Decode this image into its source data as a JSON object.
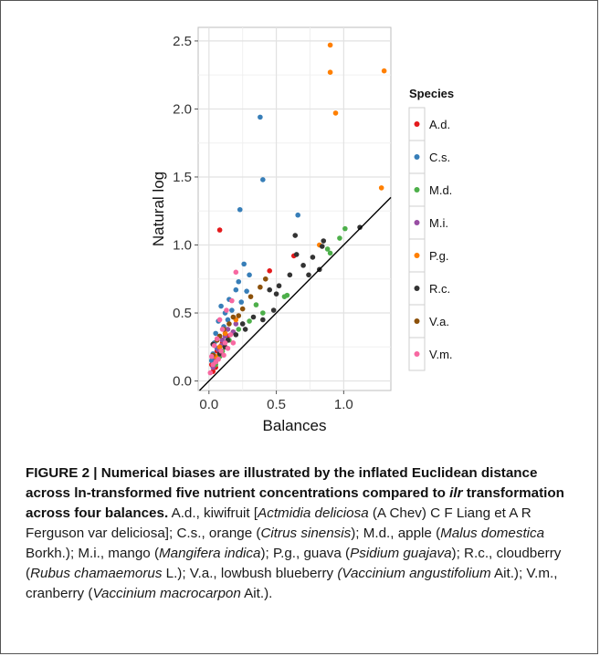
{
  "chart_data": {
    "type": "scatter",
    "title": "",
    "xlabel": "Balances",
    "ylabel": "Natural log",
    "xlim": [
      -0.08,
      1.35
    ],
    "ylim": [
      -0.07,
      2.6
    ],
    "xticks": [
      0.0,
      0.5,
      1.0
    ],
    "xtick_labels": [
      "0.0",
      "0.5",
      "1.0"
    ],
    "yticks": [
      0.0,
      0.5,
      1.0,
      1.5,
      2.0,
      2.5
    ],
    "ytick_labels": [
      "0.0",
      "0.5",
      "1.0",
      "1.5",
      "2.0",
      "2.5"
    ],
    "grid": true,
    "background": "#ffffff",
    "legend": {
      "title": "Species",
      "placement": "right"
    },
    "reference_line": {
      "slope": 1,
      "intercept": 0
    },
    "series": [
      {
        "name": "A.d.",
        "color": "#e41a1c",
        "points": [
          [
            0.08,
            1.11
          ],
          [
            0.45,
            0.81
          ],
          [
            0.63,
            0.92
          ],
          [
            0.02,
            0.12
          ],
          [
            0.04,
            0.17
          ],
          [
            0.06,
            0.22
          ],
          [
            0.1,
            0.28
          ],
          [
            0.14,
            0.33
          ],
          [
            0.05,
            0.1
          ],
          [
            0.09,
            0.2
          ],
          [
            0.18,
            0.36
          ],
          [
            0.03,
            0.07
          ]
        ]
      },
      {
        "name": "C.s.",
        "color": "#377eb8",
        "points": [
          [
            0.38,
            1.94
          ],
          [
            0.4,
            1.48
          ],
          [
            0.23,
            1.26
          ],
          [
            0.66,
            1.22
          ],
          [
            0.26,
            0.86
          ],
          [
            0.3,
            0.78
          ],
          [
            0.22,
            0.73
          ],
          [
            0.2,
            0.67
          ],
          [
            0.28,
            0.66
          ],
          [
            0.15,
            0.6
          ],
          [
            0.24,
            0.58
          ],
          [
            0.09,
            0.55
          ],
          [
            0.12,
            0.5
          ],
          [
            0.17,
            0.52
          ],
          [
            0.07,
            0.44
          ],
          [
            0.11,
            0.4
          ],
          [
            0.05,
            0.35
          ],
          [
            0.14,
            0.45
          ],
          [
            0.04,
            0.28
          ],
          [
            0.03,
            0.2
          ],
          [
            0.02,
            0.15
          ],
          [
            0.1,
            0.3
          ],
          [
            0.06,
            0.24
          ]
        ]
      },
      {
        "name": "M.d.",
        "color": "#4daf4a",
        "points": [
          [
            1.01,
            1.12
          ],
          [
            0.97,
            1.05
          ],
          [
            0.88,
            0.97
          ],
          [
            0.9,
            0.94
          ],
          [
            0.56,
            0.62
          ],
          [
            0.58,
            0.63
          ],
          [
            0.35,
            0.56
          ],
          [
            0.4,
            0.5
          ],
          [
            0.3,
            0.44
          ],
          [
            0.22,
            0.38
          ],
          [
            0.15,
            0.3
          ],
          [
            0.1,
            0.22
          ],
          [
            0.05,
            0.12
          ],
          [
            0.08,
            0.18
          ]
        ]
      },
      {
        "name": "M.i.",
        "color": "#984ea3",
        "points": [
          [
            0.14,
            0.38
          ],
          [
            0.1,
            0.3
          ],
          [
            0.07,
            0.23
          ],
          [
            0.05,
            0.17
          ],
          [
            0.12,
            0.33
          ],
          [
            0.18,
            0.36
          ],
          [
            0.03,
            0.1
          ],
          [
            0.2,
            0.42
          ],
          [
            0.09,
            0.26
          ]
        ]
      },
      {
        "name": "P.g.",
        "color": "#ff7f00",
        "points": [
          [
            0.9,
            2.47
          ],
          [
            0.9,
            2.27
          ],
          [
            1.3,
            2.28
          ],
          [
            0.94,
            1.97
          ],
          [
            1.28,
            1.42
          ],
          [
            0.82,
            1.0
          ],
          [
            0.2,
            0.45
          ],
          [
            0.12,
            0.35
          ],
          [
            0.08,
            0.25
          ],
          [
            0.05,
            0.18
          ]
        ]
      },
      {
        "name": "R.c.",
        "color": "#333333",
        "points": [
          [
            1.12,
            1.13
          ],
          [
            0.85,
            1.03
          ],
          [
            0.84,
            0.99
          ],
          [
            0.65,
            0.93
          ],
          [
            0.64,
            1.07
          ],
          [
            0.77,
            0.91
          ],
          [
            0.7,
            0.85
          ],
          [
            0.82,
            0.82
          ],
          [
            0.74,
            0.78
          ],
          [
            0.6,
            0.78
          ],
          [
            0.52,
            0.7
          ],
          [
            0.45,
            0.67
          ],
          [
            0.5,
            0.64
          ],
          [
            0.33,
            0.47
          ],
          [
            0.4,
            0.45
          ],
          [
            0.48,
            0.52
          ],
          [
            0.27,
            0.38
          ],
          [
            0.2,
            0.34
          ],
          [
            0.14,
            0.3
          ],
          [
            0.08,
            0.2
          ],
          [
            0.05,
            0.14
          ],
          [
            0.03,
            0.27
          ],
          [
            0.12,
            0.25
          ],
          [
            0.25,
            0.42
          ]
        ]
      },
      {
        "name": "V.a.",
        "color": "#8c510a",
        "points": [
          [
            0.42,
            0.75
          ],
          [
            0.38,
            0.69
          ],
          [
            0.31,
            0.62
          ],
          [
            0.25,
            0.53
          ],
          [
            0.18,
            0.47
          ],
          [
            0.11,
            0.38
          ],
          [
            0.06,
            0.3
          ],
          [
            0.03,
            0.19
          ],
          [
            0.15,
            0.42
          ],
          [
            0.08,
            0.33
          ],
          [
            0.22,
            0.48
          ]
        ]
      },
      {
        "name": "V.m.",
        "color": "#f768a1",
        "points": [
          [
            0.2,
            0.8
          ],
          [
            0.17,
            0.59
          ],
          [
            0.13,
            0.52
          ],
          [
            0.08,
            0.45
          ],
          [
            0.1,
            0.38
          ],
          [
            0.06,
            0.31
          ],
          [
            0.04,
            0.26
          ],
          [
            0.02,
            0.18
          ],
          [
            0.12,
            0.28
          ],
          [
            0.16,
            0.34
          ],
          [
            0.03,
            0.12
          ],
          [
            0.01,
            0.06
          ],
          [
            0.05,
            0.14
          ],
          [
            0.09,
            0.22
          ],
          [
            0.07,
            0.16
          ],
          [
            0.14,
            0.24
          ],
          [
            0.11,
            0.19
          ],
          [
            0.18,
            0.28
          ]
        ]
      }
    ]
  },
  "caption": {
    "lead": "FIGURE 2 | Numerical biases are illustrated by the inflated Euclidean distance across ln-transformed five nutrient concentrations compared to ilr transformation across four balances.",
    "parts": [
      {
        "t": "A.d., kiwifruit [",
        "i": false
      },
      {
        "t": "Actmidia deliciosa",
        "i": true
      },
      {
        "t": " (A Chev) C F Liang et A R Ferguson var deliciosa]; C.s., orange (",
        "i": false
      },
      {
        "t": "Citrus sinensis",
        "i": true
      },
      {
        "t": "); M.d., apple (",
        "i": false
      },
      {
        "t": "Malus domestica",
        "i": true
      },
      {
        "t": " Borkh.); M.i., mango (",
        "i": false
      },
      {
        "t": "Mangifera indica",
        "i": true
      },
      {
        "t": "); P.g., guava (",
        "i": false
      },
      {
        "t": "Psidium guajava",
        "i": true
      },
      {
        "t": "); R.c., cloudberry (",
        "i": false
      },
      {
        "t": "Rubus chamaemorus",
        "i": true
      },
      {
        "t": " L.); V.a., lowbush blueberry ",
        "i": false
      },
      {
        "t": "(Vaccinium angustifolium",
        "i": true
      },
      {
        "t": " Ait.); V.m., cranberry (",
        "i": false
      },
      {
        "t": "Vaccinium macrocarpon",
        "i": true
      },
      {
        "t": " Ait.).",
        "i": false
      }
    ]
  }
}
